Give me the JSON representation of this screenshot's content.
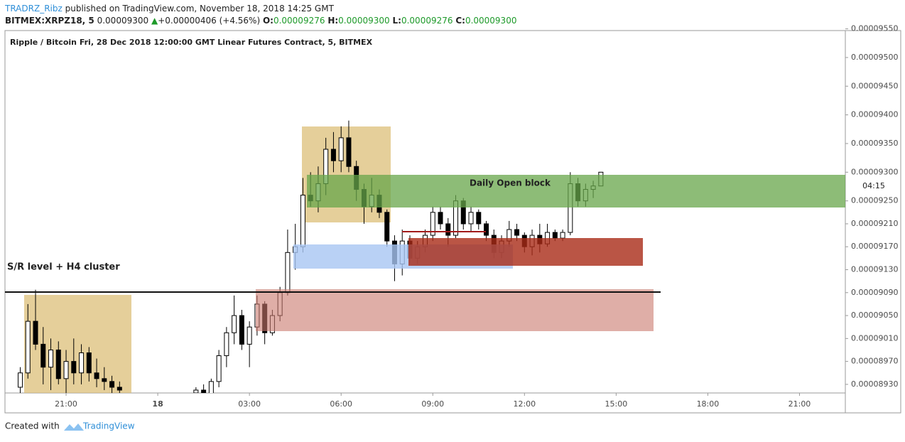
{
  "header": {
    "publisher": "TRADRZ_Ribz",
    "published": "published on TradingView.com, November 18, 2018 14:25 GMT",
    "symbol": "BITMEX:XRPZ18, 5",
    "last": "0.00009300",
    "arrow": "▲",
    "change": "+0.00000406 (+4.56%)",
    "ohlc": [
      {
        "label": "O:",
        "value": "0.00009276"
      },
      {
        "label": "H:",
        "value": "0.00009300"
      },
      {
        "label": "L:",
        "value": "0.00009276"
      },
      {
        "label": "C:",
        "value": "0.00009300"
      }
    ]
  },
  "chart_data": {
    "type": "candlestick",
    "title": "Ripple / Bitcoin Fri, 28 Dec 2018 12:00:00 GMT Linear Futures Contract, 5, BITMEX",
    "x": [
      -4.5,
      -4.25,
      -4,
      -3.75,
      -3.5,
      -3.25,
      -3,
      -2.75,
      -2.5,
      -2.25,
      -2,
      -1.75,
      -1.5,
      -1.25,
      1.25,
      1.5,
      1.75,
      2,
      2.25,
      2.5,
      2.75,
      3,
      3.25,
      3.5,
      3.75,
      4,
      4.25,
      4.5,
      4.75,
      5,
      5.25,
      5.5,
      5.75,
      6,
      6.25,
      6.5,
      6.75,
      7,
      7.25,
      7.5,
      7.75,
      8,
      8.25,
      8.5,
      8.75,
      9,
      9.25,
      9.5,
      9.75,
      10,
      10.25,
      10.5,
      10.75,
      11,
      11.25,
      11.5,
      11.75,
      12,
      12.25,
      12.5,
      12.75,
      13,
      13.25,
      13.5,
      13.75,
      14,
      14.25,
      14.5
    ],
    "open": [
      8.925e-05,
      8.95e-05,
      9.04e-05,
      9e-05,
      8.96e-05,
      8.99e-05,
      8.94e-05,
      8.97e-05,
      8.95e-05,
      8.985e-05,
      8.95e-05,
      8.94e-05,
      8.935e-05,
      8.925e-05,
      8.915e-05,
      8.92e-05,
      8.91e-05,
      8.935e-05,
      8.98e-05,
      9.02e-05,
      9.05e-05,
      9e-05,
      9.03e-05,
      9.07e-05,
      9.02e-05,
      9.05e-05,
      9.09e-05,
      9.16e-05,
      9.17e-05,
      9.26e-05,
      9.25e-05,
      9.28e-05,
      9.34e-05,
      9.32e-05,
      9.36e-05,
      9.31e-05,
      9.27e-05,
      9.24e-05,
      9.26e-05,
      9.23e-05,
      9.18e-05,
      9.14e-05,
      9.18e-05,
      9.15e-05,
      9.17e-05,
      9.19e-05,
      9.23e-05,
      9.21e-05,
      9.19e-05,
      9.25e-05,
      9.21e-05,
      9.23e-05,
      9.21e-05,
      9.19e-05,
      9.16e-05,
      9.18e-05,
      9.2e-05,
      9.19e-05,
      9.17e-05,
      9.19e-05,
      9.175e-05,
      9.195e-05,
      9.185e-05,
      9.195e-05,
      9.28e-05,
      9.25e-05,
      9.27e-05,
      9.276e-05
    ],
    "high": [
      8.96e-05,
      9.07e-05,
      9.095e-05,
      9.03e-05,
      9.01e-05,
      9.005e-05,
      8.99e-05,
      9.01e-05,
      9e-05,
      8.995e-05,
      8.975e-05,
      8.96e-05,
      8.945e-05,
      8.935e-05,
      8.925e-05,
      8.93e-05,
      8.94e-05,
      8.99e-05,
      9.03e-05,
      9.085e-05,
      9.06e-05,
      9.04e-05,
      9.085e-05,
      9.075e-05,
      9.06e-05,
      9.1e-05,
      9.2e-05,
      9.21e-05,
      9.29e-05,
      9.3e-05,
      9.31e-05,
      9.36e-05,
      9.37e-05,
      9.38e-05,
      9.39e-05,
      9.32e-05,
      9.28e-05,
      9.29e-05,
      9.27e-05,
      9.235e-05,
      9.19e-05,
      9.2e-05,
      9.19e-05,
      9.18e-05,
      9.2e-05,
      9.24e-05,
      9.24e-05,
      9.22e-05,
      9.26e-05,
      9.255e-05,
      9.24e-05,
      9.235e-05,
      9.215e-05,
      9.2e-05,
      9.19e-05,
      9.215e-05,
      9.21e-05,
      9.195e-05,
      9.2e-05,
      9.21e-05,
      9.21e-05,
      9.2e-05,
      9.2e-05,
      9.3e-05,
      9.29e-05,
      9.28e-05,
      9.285e-05,
      9.3e-05
    ],
    "low": [
      8.91e-05,
      8.94e-05,
      8.99e-05,
      8.93e-05,
      8.92e-05,
      8.93e-05,
      8.915e-05,
      8.93e-05,
      8.93e-05,
      8.935e-05,
      8.925e-05,
      8.92e-05,
      8.915e-05,
      8.912e-05,
      8.905e-05,
      8.9e-05,
      8.905e-05,
      8.925e-05,
      8.96e-05,
      9e-05,
      8.99e-05,
      8.96e-05,
      9.015e-05,
      9e-05,
      9.015e-05,
      9.04e-05,
      9.085e-05,
      9.13e-05,
      9.16e-05,
      9.24e-05,
      9.23e-05,
      9.26e-05,
      9.3e-05,
      9.3e-05,
      9.3e-05,
      9.25e-05,
      9.21e-05,
      9.23e-05,
      9.22e-05,
      9.17e-05,
      9.11e-05,
      9.12e-05,
      9.14e-05,
      9.14e-05,
      9.16e-05,
      9.18e-05,
      9.2e-05,
      9.17e-05,
      9.185e-05,
      9.2e-05,
      9.195e-05,
      9.2e-05,
      9.18e-05,
      9.15e-05,
      9.15e-05,
      9.17e-05,
      9.18e-05,
      9.16e-05,
      9.155e-05,
      9.16e-05,
      9.17e-05,
      9.18e-05,
      9.18e-05,
      9.19e-05,
      9.24e-05,
      9.24e-05,
      9.255e-05,
      9.276e-05
    ],
    "close": [
      8.95e-05,
      9.04e-05,
      9e-05,
      8.96e-05,
      8.99e-05,
      8.94e-05,
      8.97e-05,
      8.95e-05,
      8.985e-05,
      8.95e-05,
      8.94e-05,
      8.935e-05,
      8.925e-05,
      8.92e-05,
      8.92e-05,
      8.91e-05,
      8.935e-05,
      8.98e-05,
      9.02e-05,
      9.05e-05,
      9e-05,
      9.03e-05,
      9.07e-05,
      9.02e-05,
      9.05e-05,
      9.09e-05,
      9.16e-05,
      9.17e-05,
      9.26e-05,
      9.25e-05,
      9.28e-05,
      9.34e-05,
      9.32e-05,
      9.36e-05,
      9.31e-05,
      9.27e-05,
      9.24e-05,
      9.26e-05,
      9.23e-05,
      9.18e-05,
      9.14e-05,
      9.18e-05,
      9.15e-05,
      9.17e-05,
      9.19e-05,
      9.23e-05,
      9.21e-05,
      9.19e-05,
      9.25e-05,
      9.21e-05,
      9.23e-05,
      9.21e-05,
      9.19e-05,
      9.16e-05,
      9.18e-05,
      9.2e-05,
      9.19e-05,
      9.17e-05,
      9.19e-05,
      9.175e-05,
      9.195e-05,
      9.185e-05,
      9.195e-05,
      9.28e-05,
      9.25e-05,
      9.27e-05,
      9.276e-05,
      9.3e-05
    ],
    "up_color": "#ffffff",
    "down_color": "#000000",
    "wick_color": "#000000",
    "xlim": [
      -5,
      22.5
    ],
    "xticks": [
      {
        "value": -3,
        "label": "21:00"
      },
      {
        "value": 0,
        "label": "18"
      },
      {
        "value": 3,
        "label": "03:00"
      },
      {
        "value": 6,
        "label": "06:00"
      },
      {
        "value": 9,
        "label": "09:00"
      },
      {
        "value": 12,
        "label": "12:00"
      },
      {
        "value": 15,
        "label": "15:00"
      },
      {
        "value": 18,
        "label": "18:00"
      },
      {
        "value": 21,
        "label": "21:00"
      }
    ],
    "ylim": [
      8.915e-05,
      9.547e-05
    ],
    "yticks": [
      {
        "value": 9.55e-05,
        "label": "0.00009550"
      },
      {
        "value": 9.5e-05,
        "label": "0.00009500"
      },
      {
        "value": 9.45e-05,
        "label": "0.00009450"
      },
      {
        "value": 9.4e-05,
        "label": "0.00009400"
      },
      {
        "value": 9.35e-05,
        "label": "0.00009350"
      },
      {
        "value": 9.3e-05,
        "label": "0.00009300"
      },
      {
        "value": 9.25e-05,
        "label": "0.00009250"
      },
      {
        "value": 9.21e-05,
        "label": "0.00009210"
      },
      {
        "value": 9.17e-05,
        "label": "0.00009170"
      },
      {
        "value": 9.13e-05,
        "label": "0.00009130"
      },
      {
        "value": 9.09e-05,
        "label": "0.00009090"
      },
      {
        "value": 9.05e-05,
        "label": "0.00009050"
      },
      {
        "value": 9.01e-05,
        "label": "0.00009010"
      },
      {
        "value": 8.97e-05,
        "label": "0.00008970"
      },
      {
        "value": 8.93e-05,
        "label": "0.00008930"
      }
    ],
    "grid": false,
    "countdown": "04:15",
    "annotations": [
      "Daily Open block",
      "S/R level + H4 cluster"
    ]
  },
  "footer": {
    "created": "Created with",
    "brand": "TradingView"
  }
}
